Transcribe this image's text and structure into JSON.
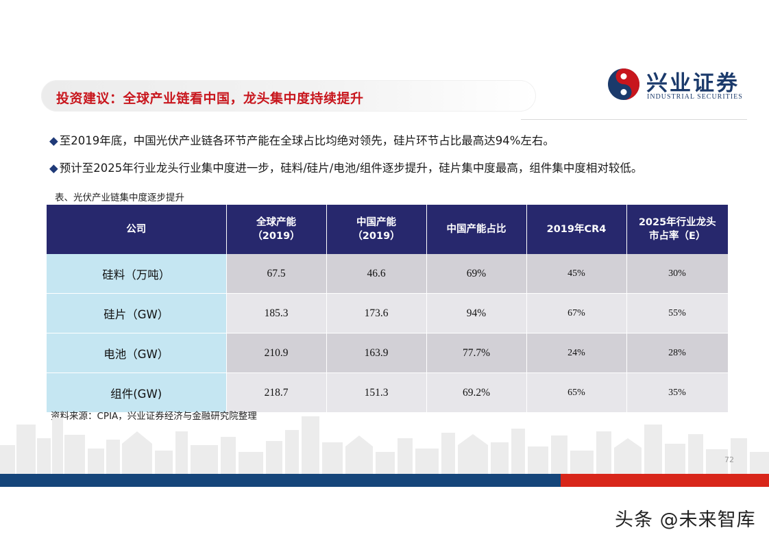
{
  "header": {
    "title": "投资建议：全球产业链看中国，龙头集中度持续提升",
    "logo": {
      "name_cn": "兴业证券",
      "name_en": "INDUSTRIAL SECURITIES",
      "icon": "industrial-securities-swirl-logo",
      "colors": {
        "red": "#c8161d",
        "navy": "#1b3a6b"
      }
    }
  },
  "bullets": [
    {
      "marker": "◆",
      "text": "至2019年底，中国光伏产业链各环节产能在全球占比均绝对领先，硅片环节占比最高达94%左右。"
    },
    {
      "marker": "◆",
      "text": "预计至2025年行业龙头行业集中度进一步，硅料/硅片/电池/组件逐步提升，硅片集中度最高，组件集中度相对较低。"
    }
  ],
  "table": {
    "caption": "表、光伏产业链集中度逐步提升",
    "headers": [
      {
        "line1": "公司",
        "line2": ""
      },
      {
        "line1": "全球产能",
        "line2": "（2019）"
      },
      {
        "line1": "中国产能",
        "line2": "（2019）"
      },
      {
        "line1": "中国产能占比",
        "line2": ""
      },
      {
        "line1": "2019年CR4",
        "line2": ""
      },
      {
        "line1": "2025年行业龙头",
        "line2": "市占率（E）"
      }
    ],
    "rows": [
      [
        "硅料（万吨）",
        "67.5",
        "46.6",
        "69%",
        "45%",
        "30%"
      ],
      [
        "硅片（GW）",
        "185.3",
        "173.6",
        "94%",
        "67%",
        "55%"
      ],
      [
        "电池（GW）",
        "210.9",
        "163.9",
        "77.7%",
        "24%",
        "28%"
      ],
      [
        "组件(GW)",
        "218.7",
        "151.3",
        "69.2%",
        "65%",
        "35%"
      ]
    ],
    "colors": {
      "header_bg": "#27286d",
      "rowhead_bg": "#c5e6f2",
      "cell_dark": "#d2d0d6",
      "cell_light": "#e7e6ea"
    }
  },
  "source": "资料来源：CPIA，兴业证券经济与金融研究院整理",
  "footer": {
    "page_number": "72",
    "watermark": "头条 @未来智库",
    "colors": {
      "blue_band": "#15457a",
      "red_band": "#d8261a"
    }
  }
}
